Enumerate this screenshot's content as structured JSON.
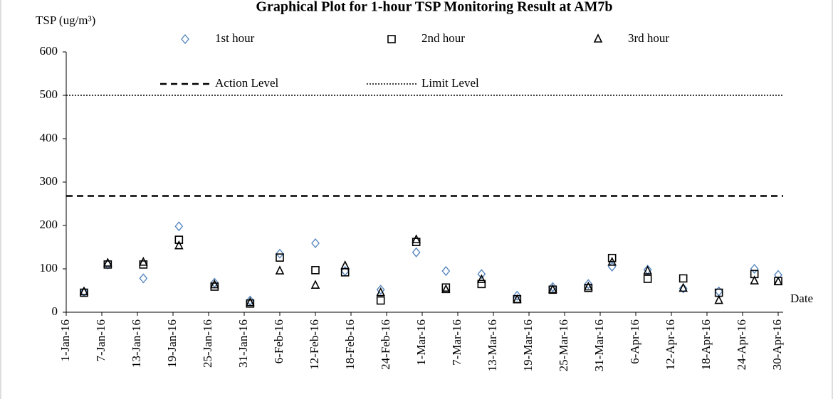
{
  "chart_data": {
    "type": "scatter",
    "title": "Graphical Plot for 1-hour TSP Monitoring Result at AM7b",
    "y_label": "TSP (ug/m³)",
    "x_label": "Date",
    "x": [
      "2016-01-04",
      "2016-01-08",
      "2016-01-14",
      "2016-01-20",
      "2016-01-26",
      "2016-02-01",
      "2016-02-06",
      "2016-02-12",
      "2016-02-17",
      "2016-02-23",
      "2016-02-29",
      "2016-03-05",
      "2016-03-11",
      "2016-03-17",
      "2016-03-23",
      "2016-03-29",
      "2016-04-02",
      "2016-04-08",
      "2016-04-14",
      "2016-04-20",
      "2016-04-26",
      "2016-04-30"
    ],
    "series": [
      {
        "name": "1st hour",
        "color": "#4f81bd",
        "marker": "diamond",
        "values": [
          47,
          110,
          78,
          198,
          68,
          27,
          135,
          159,
          95,
          52,
          138,
          95,
          88,
          38,
          58,
          65,
          105,
          98,
          55,
          48,
          100,
          86
        ]
      },
      {
        "name": "2nd hour",
        "color": "#000000",
        "marker": "square",
        "values": [
          45,
          110,
          110,
          167,
          59,
          20,
          126,
          97,
          92,
          27,
          162,
          57,
          65,
          30,
          52,
          56,
          125,
          77,
          78,
          45,
          88,
          72
        ]
      },
      {
        "name": "3rd hour",
        "color": "#000000",
        "marker": "triangle",
        "values": [
          47,
          113,
          115,
          153,
          63,
          22,
          95,
          62,
          107,
          45,
          167,
          52,
          75,
          29,
          52,
          58,
          115,
          95,
          55,
          27,
          72,
          70
        ]
      }
    ],
    "reference_lines": [
      {
        "name": "Action Level",
        "value": 268,
        "style": "dashed",
        "color": "#000000"
      },
      {
        "name": "Limit Level",
        "value": 500,
        "style": "dotted",
        "color": "#000000"
      }
    ],
    "xlim": [
      "2016-01-01",
      "2016-04-30"
    ],
    "xticks": [
      {
        "value": "2016-01-01",
        "label": "1-Jan-16"
      },
      {
        "value": "2016-01-07",
        "label": "7-Jan-16"
      },
      {
        "value": "2016-01-13",
        "label": "13-Jan-16"
      },
      {
        "value": "2016-01-19",
        "label": "19-Jan-16"
      },
      {
        "value": "2016-01-25",
        "label": "25-Jan-16"
      },
      {
        "value": "2016-01-31",
        "label": "31-Jan-16"
      },
      {
        "value": "2016-02-06",
        "label": "6-Feb-16"
      },
      {
        "value": "2016-02-12",
        "label": "12-Feb-16"
      },
      {
        "value": "2016-02-18",
        "label": "18-Feb-16"
      },
      {
        "value": "2016-02-24",
        "label": "24-Feb-16"
      },
      {
        "value": "2016-03-01",
        "label": "1-Mar-16"
      },
      {
        "value": "2016-03-07",
        "label": "7-Mar-16"
      },
      {
        "value": "2016-03-13",
        "label": "13-Mar-16"
      },
      {
        "value": "2016-03-19",
        "label": "19-Mar-16"
      },
      {
        "value": "2016-03-25",
        "label": "25-Mar-16"
      },
      {
        "value": "2016-03-31",
        "label": "31-Mar-16"
      },
      {
        "value": "2016-04-06",
        "label": "6-Apr-16"
      },
      {
        "value": "2016-04-12",
        "label": "12-Apr-16"
      },
      {
        "value": "2016-04-18",
        "label": "18-Apr-16"
      },
      {
        "value": "2016-04-24",
        "label": "24-Apr-16"
      },
      {
        "value": "2016-04-30",
        "label": "30-Apr-16"
      }
    ],
    "ylim": [
      0,
      600
    ],
    "yticks": [
      0,
      100,
      200,
      300,
      400,
      500,
      600
    ],
    "grid": false
  }
}
